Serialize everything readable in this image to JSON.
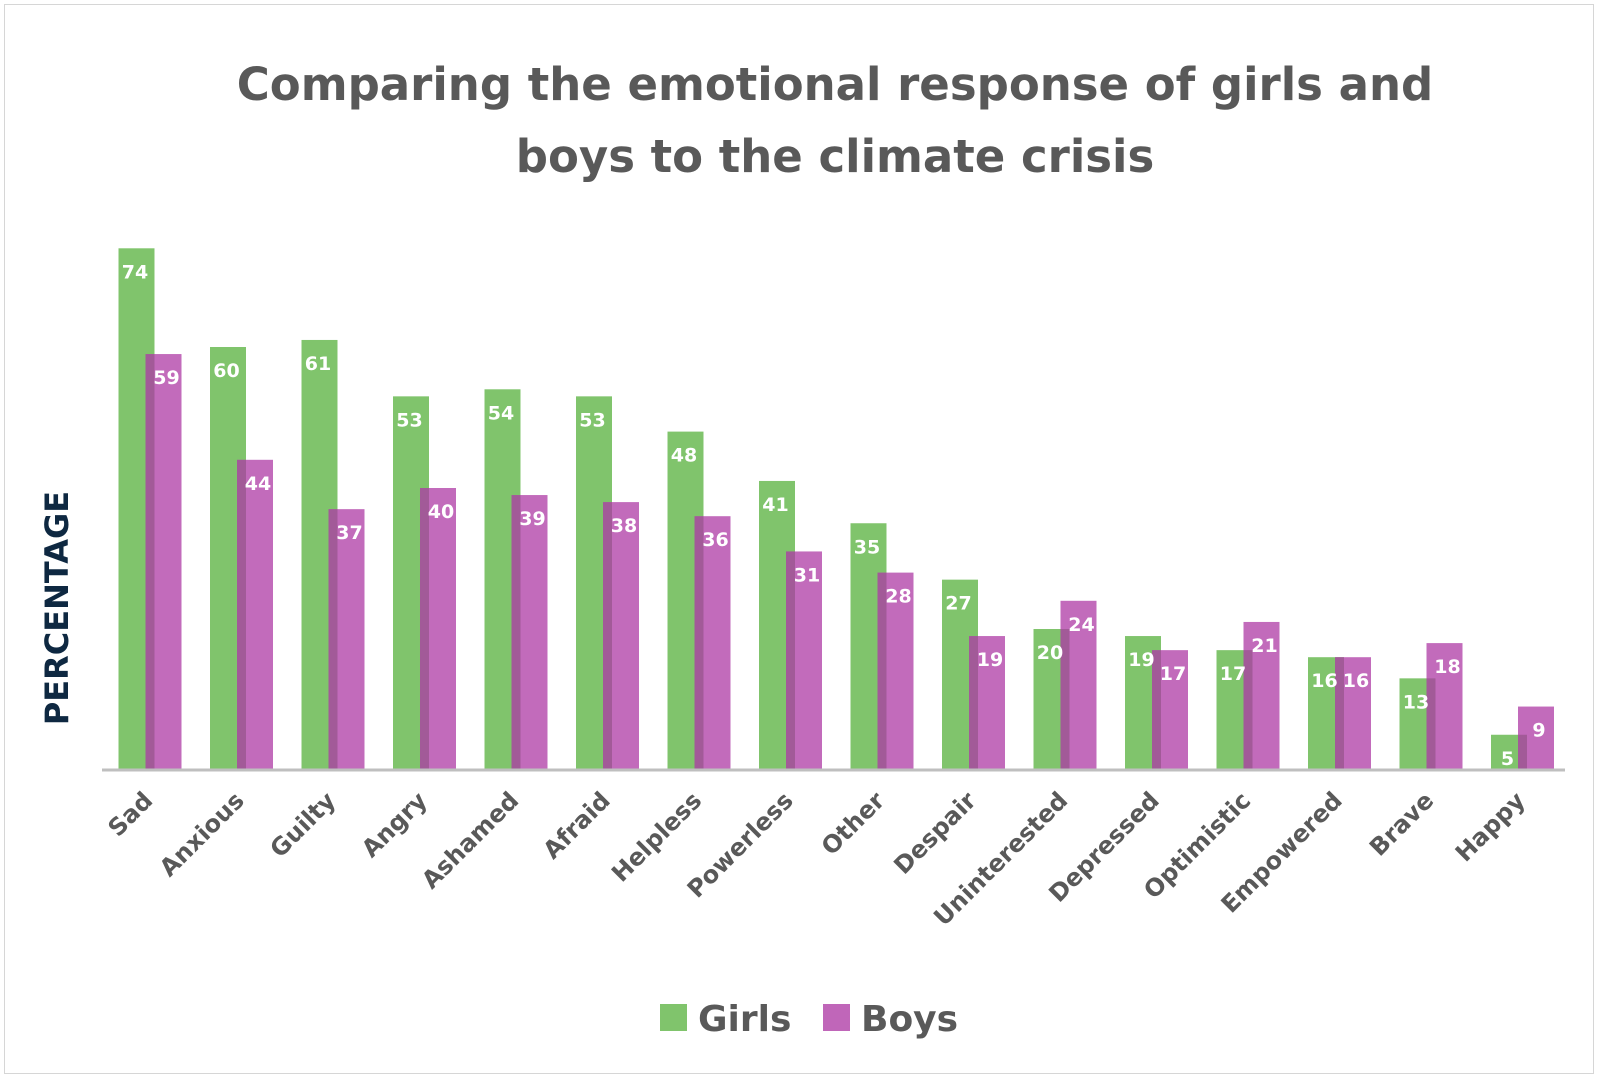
{
  "chart_data": {
    "type": "bar",
    "title_lines": [
      "Comparing the emotional response of girls and",
      "boys to the climate crisis"
    ],
    "xlabel": "",
    "ylabel": "PERCENTAGE",
    "ylim": [
      0,
      80
    ],
    "grid": false,
    "legend_position": "bottom",
    "categories": [
      "Sad",
      "Anxious",
      "Guilty",
      "Angry",
      "Ashamed",
      "Afraid",
      "Helpless",
      "Powerless",
      "Other",
      "Despair",
      "Uninterested",
      "Depressed",
      "Optimistic",
      "Empowered",
      "Brave",
      "Happy"
    ],
    "series": [
      {
        "name": "Girls",
        "color": "#80c46c",
        "values": [
          74,
          60,
          61,
          53,
          54,
          53,
          48,
          41,
          35,
          27,
          20,
          19,
          17,
          16,
          13,
          5
        ]
      },
      {
        "name": "Boys",
        "color": "#c066b9",
        "values": [
          59,
          44,
          37,
          40,
          39,
          38,
          36,
          31,
          28,
          19,
          24,
          17,
          21,
          16,
          18,
          9
        ]
      }
    ]
  }
}
